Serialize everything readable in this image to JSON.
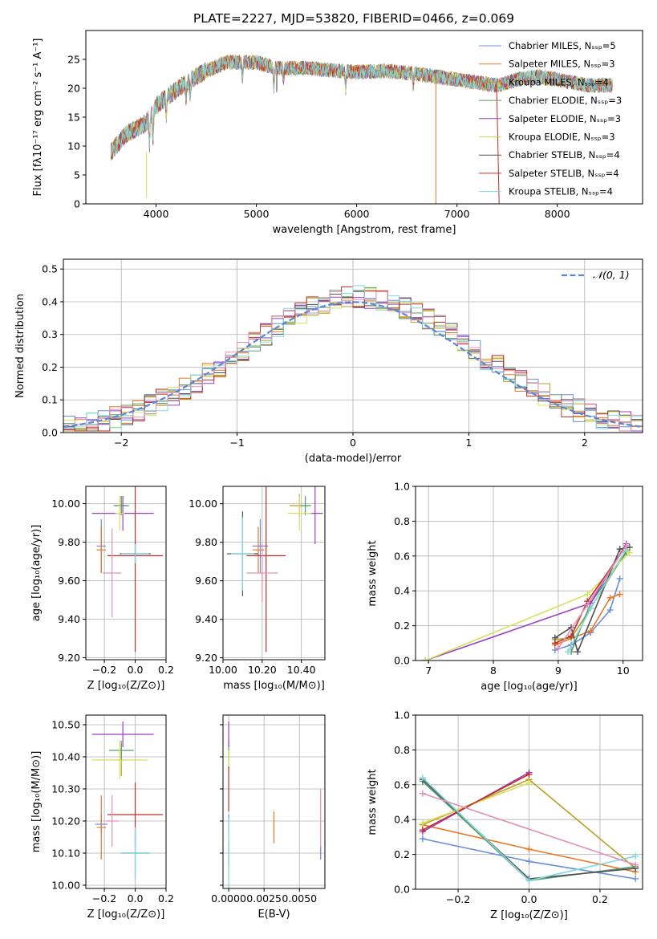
{
  "figure_title": "PLATE=2227, MJD=53820, FIBERID=0466, z=0.069",
  "colors": {
    "series": [
      "#6a8ed8",
      "#e8782a",
      "#b8a020",
      "#5a9a6a",
      "#9a40c0",
      "#d8e060",
      "#505050",
      "#c03028",
      "#80d8e0"
    ],
    "pink": "#e090b8",
    "normal_curve": "#5b88d0",
    "grid": "#b0b0b0"
  },
  "chart_data": [
    {
      "id": "spectrum",
      "type": "line",
      "xlabel": "wavelength [Angstrom, rest frame]",
      "ylabel": "Flux [fλ10⁻¹⁷ erg cm⁻² s⁻¹ A⁻¹]",
      "xlim": [
        3300,
        8850
      ],
      "ylim": [
        0,
        30
      ],
      "xticks": [
        4000,
        5000,
        6000,
        7000,
        8000
      ],
      "yticks": [
        0,
        5,
        10,
        15,
        20,
        25
      ],
      "grid": false,
      "legend_position": "top-right",
      "legend": [
        {
          "label": "Chabrier MILES, Nₛₛₚ=5",
          "color": "#6a8ed8"
        },
        {
          "label": "Salpeter MILES, Nₛₛₚ=3",
          "color": "#e8782a"
        },
        {
          "label": "Kroupa MILES, Nₛₛₚ=4",
          "color": "#b8a020"
        },
        {
          "label": "Chabrier ELODIE, Nₛₛₚ=3",
          "color": "#5a9a6a"
        },
        {
          "label": "Salpeter ELODIE, Nₛₛₚ=3",
          "color": "#9a40c0"
        },
        {
          "label": "Kroupa ELODIE, Nₛₛₚ=3",
          "color": "#d8e060"
        },
        {
          "label": "Chabrier STELIB, Nₛₛₚ=4",
          "color": "#505050"
        },
        {
          "label": "Salpeter STELIB, Nₛₛₚ=4",
          "color": "#c03028"
        },
        {
          "label": "Kroupa STELIB, Nₛₛₚ=4",
          "color": "#80d8e0"
        }
      ],
      "continuum": [
        [
          3550,
          9
        ],
        [
          3700,
          12
        ],
        [
          3900,
          14
        ],
        [
          4000,
          17
        ],
        [
          4150,
          19
        ],
        [
          4300,
          21
        ],
        [
          4500,
          23
        ],
        [
          4700,
          24.5
        ],
        [
          5000,
          24.5
        ],
        [
          5200,
          23.5
        ],
        [
          5500,
          23.5
        ],
        [
          5800,
          23
        ],
        [
          6000,
          22.8
        ],
        [
          6300,
          23
        ],
        [
          6600,
          22.5
        ],
        [
          7000,
          21.5
        ],
        [
          7400,
          20.5
        ],
        [
          7600,
          21.5
        ],
        [
          7800,
          22
        ],
        [
          8000,
          21.5
        ],
        [
          8300,
          20.5
        ],
        [
          8500,
          20.5
        ]
      ]
    },
    {
      "id": "residuals",
      "type": "histogram",
      "xlabel": "(data-model)/error",
      "ylabel": "Normed distribution",
      "xlim": [
        -2.5,
        2.5
      ],
      "ylim": [
        0,
        0.53
      ],
      "xticks": [
        -2,
        -1,
        0,
        1,
        2
      ],
      "yticks": [
        0.0,
        0.1,
        0.2,
        0.3,
        0.4,
        0.5
      ],
      "grid": true,
      "legend_position": "top-right",
      "legend": [
        {
          "label": "𝒩(0, 1)"
        }
      ],
      "bin_width": 0.1
    },
    {
      "id": "age_vs_Z",
      "type": "errorbar",
      "xlabel": "Z [log₁₀(Z/Z⊙)]",
      "ylabel": "age  [log₁₀(age/yr)]",
      "xlim": [
        -0.32,
        0.2
      ],
      "ylim": [
        9.19,
        10.09
      ],
      "xticks": [
        -0.2,
        0.0,
        0.2
      ],
      "yticks": [
        9.2,
        9.4,
        9.6,
        9.8,
        10.0
      ],
      "grid": true,
      "points": [
        {
          "x": -0.22,
          "y": 9.78,
          "xerr": 0.03,
          "yerr": 0.14,
          "color": "#6a8ed8"
        },
        {
          "x": -0.22,
          "y": 9.76,
          "xerr": 0.03,
          "yerr": 0.12,
          "color": "#e8782a"
        },
        {
          "x": -0.09,
          "y": 9.99,
          "xerr": 0.04,
          "yerr": 0.05,
          "color": "#b8a020"
        },
        {
          "x": -0.09,
          "y": 9.99,
          "xerr": 0.05,
          "yerr": 0.05,
          "color": "#5a9a6a"
        },
        {
          "x": -0.08,
          "y": 9.95,
          "xerr": 0.2,
          "yerr": 0.09,
          "color": "#9a40c0"
        },
        {
          "x": -0.1,
          "y": 9.95,
          "xerr": 0.03,
          "yerr": 0.09,
          "color": "#d8e060"
        },
        {
          "x": 0.0,
          "y": 9.74,
          "xerr": 0.1,
          "yerr": 0.06,
          "color": "#505050"
        },
        {
          "x": 0.0,
          "y": 9.73,
          "xerr": 0.18,
          "yerr": 0.5,
          "color": "#c03028"
        },
        {
          "x": 0.0,
          "y": 9.74,
          "xerr": 0.09,
          "yerr": 0.05,
          "color": "#80d8e0"
        },
        {
          "x": -0.15,
          "y": 9.64,
          "xerr": 0.06,
          "yerr": 0.23,
          "color": "#e090b8"
        }
      ]
    },
    {
      "id": "age_vs_mass",
      "type": "errorbar",
      "xlabel": "mass [log₁₀(M/M⊙)]",
      "ylabel": "",
      "xlim": [
        10.0,
        10.52
      ],
      "ylim": [
        9.19,
        10.09
      ],
      "xticks": [
        10.0,
        10.2,
        10.4
      ],
      "yticks": [
        9.2,
        9.4,
        9.6,
        9.8,
        10.0
      ],
      "grid": true,
      "points": [
        {
          "x": 10.19,
          "y": 9.78,
          "xerr": 0.04,
          "yerr": 0.14,
          "color": "#6a8ed8"
        },
        {
          "x": 10.18,
          "y": 9.76,
          "xerr": 0.03,
          "yerr": 0.12,
          "color": "#e8782a"
        },
        {
          "x": 10.39,
          "y": 9.99,
          "xerr": 0.05,
          "yerr": 0.06,
          "color": "#b8a020"
        },
        {
          "x": 10.42,
          "y": 9.99,
          "xerr": 0.03,
          "yerr": 0.05,
          "color": "#5a9a6a"
        },
        {
          "x": 10.47,
          "y": 9.95,
          "xerr": 0.04,
          "yerr": 0.16,
          "color": "#9a40c0"
        },
        {
          "x": 10.39,
          "y": 9.95,
          "xerr": 0.06,
          "yerr": 0.09,
          "color": "#d8e060"
        },
        {
          "x": 10.1,
          "y": 9.74,
          "xerr": 0.08,
          "yerr": 0.22,
          "color": "#505050"
        },
        {
          "x": 10.22,
          "y": 9.73,
          "xerr": 0.1,
          "yerr": 0.5,
          "color": "#c03028"
        },
        {
          "x": 10.1,
          "y": 9.74,
          "xerr": 0.06,
          "yerr": 0.19,
          "color": "#80d8e0"
        },
        {
          "x": 10.2,
          "y": 9.64,
          "xerr": 0.08,
          "yerr": 0.15,
          "color": "#e090b8"
        }
      ]
    },
    {
      "id": "mass_weight_vs_age",
      "type": "line",
      "xlabel": "age  [log₁₀(age/yr)]",
      "ylabel": "mass weight",
      "xlim": [
        6.8,
        10.3
      ],
      "ylim": [
        0.0,
        1.0
      ],
      "xticks": [
        7,
        8,
        9,
        10
      ],
      "yticks": [
        0.0,
        0.2,
        0.4,
        0.6,
        0.8,
        1.0
      ],
      "grid": true,
      "series": [
        {
          "color": "#6a8ed8",
          "x": [
            8.95,
            9.2,
            9.5,
            9.8,
            9.95
          ],
          "y": [
            0.06,
            0.09,
            0.16,
            0.29,
            0.47
          ]
        },
        {
          "color": "#e8782a",
          "x": [
            8.95,
            9.5,
            9.8,
            9.95
          ],
          "y": [
            0.09,
            0.17,
            0.36,
            0.38
          ]
        },
        {
          "color": "#b8a020",
          "x": [
            8.95,
            9.2,
            9.5,
            10.05
          ],
          "y": [
            0.12,
            0.13,
            0.3,
            0.63
          ]
        },
        {
          "color": "#5a9a6a",
          "x": [
            9.2,
            9.5,
            10.05
          ],
          "y": [
            0.05,
            0.33,
            0.62
          ]
        },
        {
          "color": "#9a40c0",
          "x": [
            6.95,
            9.5,
            10.05
          ],
          "y": [
            0.0,
            0.33,
            0.67
          ]
        },
        {
          "color": "#d8e060",
          "x": [
            6.95,
            9.45,
            10.1
          ],
          "y": [
            0.0,
            0.38,
            0.62
          ]
        },
        {
          "color": "#505050",
          "x": [
            8.95,
            9.2,
            9.3,
            9.95,
            10.1
          ],
          "y": [
            0.13,
            0.19,
            0.05,
            0.64,
            0.65
          ]
        },
        {
          "color": "#c03028",
          "x": [
            8.95,
            9.2,
            9.45,
            10.05
          ],
          "y": [
            0.1,
            0.14,
            0.34,
            0.66
          ]
        },
        {
          "color": "#80d8e0",
          "x": [
            9.15,
            9.5,
            10.05
          ],
          "y": [
            0.05,
            0.3,
            0.64
          ]
        },
        {
          "color": "#e090b8",
          "x": [
            9.0,
            9.45,
            10.05
          ],
          "y": [
            0.07,
            0.32,
            0.66
          ]
        }
      ]
    },
    {
      "id": "mass_vs_Z",
      "type": "errorbar",
      "xlabel": "Z [log₁₀(Z/Z⊙)]",
      "ylabel": "mass [log₁₀(M/M⊙)]",
      "xlim": [
        -0.32,
        0.2
      ],
      "ylim": [
        9.99,
        10.53
      ],
      "xticks": [
        -0.2,
        0.0,
        0.2
      ],
      "yticks": [
        10.0,
        10.1,
        10.2,
        10.3,
        10.4,
        10.5
      ],
      "grid": true,
      "points": [
        {
          "x": -0.22,
          "y": 10.19,
          "xerr": 0.04,
          "yerr": 0.03,
          "color": "#6a8ed8"
        },
        {
          "x": -0.22,
          "y": 10.18,
          "xerr": 0.03,
          "yerr": 0.1,
          "color": "#e8782a"
        },
        {
          "x": -0.09,
          "y": 10.39,
          "xerr": 0.03,
          "yerr": 0.05,
          "color": "#b8a020"
        },
        {
          "x": -0.09,
          "y": 10.42,
          "xerr": 0.08,
          "yerr": 0.03,
          "color": "#5a9a6a"
        },
        {
          "x": -0.08,
          "y": 10.47,
          "xerr": 0.2,
          "yerr": 0.04,
          "color": "#9a40c0"
        },
        {
          "x": -0.1,
          "y": 10.39,
          "xerr": 0.18,
          "yerr": 0.06,
          "color": "#d8e060"
        },
        {
          "x": 0.0,
          "y": 10.1,
          "xerr": 0.09,
          "yerr": 0.08,
          "color": "#505050"
        },
        {
          "x": 0.0,
          "y": 10.22,
          "xerr": 0.18,
          "yerr": 0.1,
          "color": "#c03028"
        },
        {
          "x": 0.0,
          "y": 10.1,
          "xerr": 0.1,
          "yerr": 0.08,
          "color": "#80d8e0"
        },
        {
          "x": -0.15,
          "y": 10.2,
          "xerr": 0.04,
          "yerr": 0.08,
          "color": "#e090b8"
        }
      ]
    },
    {
      "id": "mass_vs_ebv",
      "type": "errorbar",
      "xlabel": "E(B-V)",
      "ylabel": "",
      "xlim": [
        -0.0004,
        0.0068
      ],
      "ylim": [
        9.99,
        10.53
      ],
      "xticks": [
        0.0,
        0.0025,
        0.005
      ],
      "xtick_labels": [
        "0.0000",
        "0.0025",
        "0.0050"
      ],
      "yticks": [
        10.0,
        10.1,
        10.2,
        10.3,
        10.4,
        10.5
      ],
      "grid": true,
      "points": [
        {
          "x": 0.0,
          "y": 10.19,
          "xerr": 0,
          "yerr": 0.03,
          "color": "#6a8ed8"
        },
        {
          "x": 0.0032,
          "y": 10.18,
          "xerr": 0,
          "yerr": 0.05,
          "color": "#e8782a"
        },
        {
          "x": 0.0,
          "y": 10.39,
          "xerr": 0,
          "yerr": 0.03,
          "color": "#b8a020"
        },
        {
          "x": 0.0,
          "y": 10.42,
          "xerr": 0,
          "yerr": 0.03,
          "color": "#5a9a6a"
        },
        {
          "x": 0.0,
          "y": 10.47,
          "xerr": 0,
          "yerr": 0.04,
          "color": "#9a40c0"
        },
        {
          "x": 0.0,
          "y": 10.39,
          "xerr": 0,
          "yerr": 0.03,
          "color": "#d8e060"
        },
        {
          "x": 0.0,
          "y": 10.1,
          "xerr": 0,
          "yerr": 0.04,
          "color": "#505050"
        },
        {
          "x": 0.0,
          "y": 10.3,
          "xerr": 0,
          "yerr": 0.07,
          "color": "#c03028"
        },
        {
          "x": 0.0,
          "y": 10.1,
          "xerr": 0,
          "yerr": 0.11,
          "color": "#80d8e0"
        },
        {
          "x": 0.0065,
          "y": 10.2,
          "xerr": 0,
          "yerr": 0.1,
          "color": "#e090b8"
        },
        {
          "x": 0.0065,
          "y": 10.1,
          "xerr": 0,
          "yerr": 0.02,
          "color": "#6a8ed8"
        }
      ]
    },
    {
      "id": "mass_weight_vs_Z",
      "type": "line",
      "xlabel": "Z [log₁₀(Z/Z⊙)]",
      "ylabel": "mass weight",
      "xlim": [
        -0.32,
        0.32
      ],
      "ylim": [
        0.0,
        1.0
      ],
      "xticks": [
        -0.2,
        0.0,
        0.2
      ],
      "yticks": [
        0.0,
        0.2,
        0.4,
        0.6,
        0.8,
        1.0
      ],
      "grid": true,
      "series": [
        {
          "color": "#6a8ed8",
          "x": [
            -0.3,
            0.0,
            0.3
          ],
          "y": [
            0.29,
            0.16,
            0.06
          ]
        },
        {
          "color": "#e8782a",
          "x": [
            -0.3,
            0.0,
            0.3
          ],
          "y": [
            0.37,
            0.23,
            0.1
          ]
        },
        {
          "color": "#b8a020",
          "x": [
            -0.3,
            0.0,
            0.3
          ],
          "y": [
            0.37,
            0.63,
            0.12
          ]
        },
        {
          "color": "#5a9a6a",
          "x": [
            -0.3,
            0.0,
            0.3
          ],
          "y": [
            0.62,
            0.05,
            0.13
          ]
        },
        {
          "color": "#9a40c0",
          "x": [
            -0.3,
            0.0
          ],
          "y": [
            0.33,
            0.67
          ]
        },
        {
          "color": "#d8e060",
          "x": [
            -0.3,
            0.0
          ],
          "y": [
            0.38,
            0.61
          ]
        },
        {
          "color": "#505050",
          "x": [
            -0.3,
            0.0,
            0.3
          ],
          "y": [
            0.63,
            0.06,
            0.12
          ]
        },
        {
          "color": "#c03028",
          "x": [
            -0.3,
            0.0
          ],
          "y": [
            0.34,
            0.66
          ]
        },
        {
          "color": "#80d8e0",
          "x": [
            -0.3,
            0.0,
            0.3
          ],
          "y": [
            0.64,
            0.05,
            0.19
          ]
        },
        {
          "color": "#e090b8",
          "x": [
            -0.3,
            0.3
          ],
          "y": [
            0.55,
            0.14
          ]
        }
      ]
    }
  ]
}
